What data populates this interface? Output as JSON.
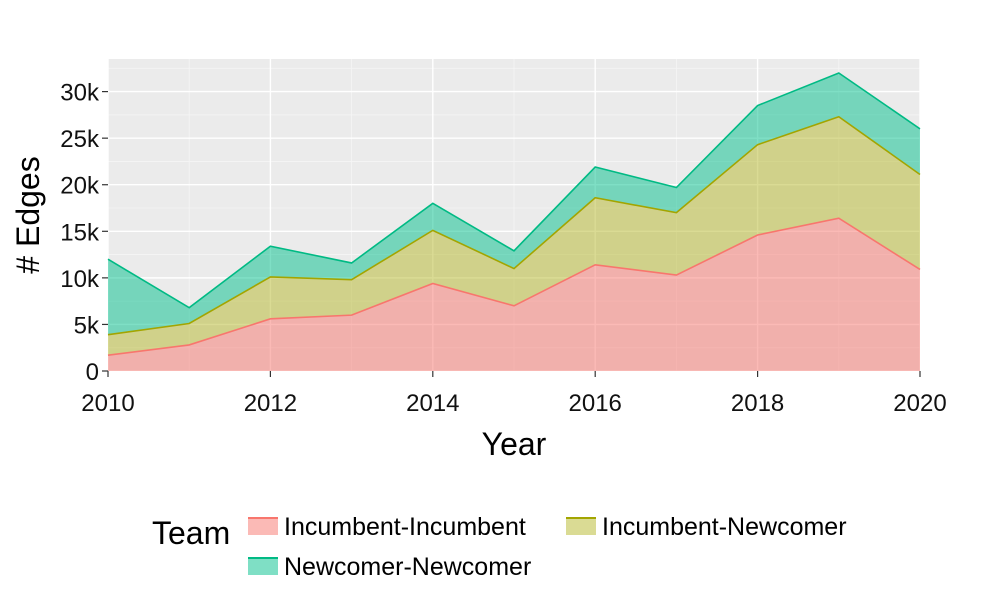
{
  "chart_data": {
    "type": "area",
    "stacked": true,
    "xlabel": "Year",
    "ylabel": "# Edges",
    "xlim": [
      2010,
      2020
    ],
    "ylim": [
      0,
      33500
    ],
    "x_ticks": [
      2010,
      2012,
      2014,
      2016,
      2018,
      2020
    ],
    "x_tick_labels": [
      "2010",
      "2012",
      "2014",
      "2016",
      "2018",
      "2020"
    ],
    "y_ticks": [
      0,
      5000,
      10000,
      15000,
      20000,
      25000,
      30000
    ],
    "y_tick_labels": [
      "0",
      "5k",
      "10k",
      "15k",
      "20k",
      "25k",
      "30k"
    ],
    "grid": true,
    "legend": {
      "title": "Team",
      "position": "bottom"
    },
    "x": [
      2010,
      2011,
      2012,
      2013,
      2014,
      2015,
      2016,
      2017,
      2018,
      2019,
      2020
    ],
    "series": [
      {
        "name": "Incumbent-Incumbent",
        "fill": "#F8766D",
        "values": [
          1700,
          2800,
          5600,
          6000,
          9400,
          7000,
          11400,
          10300,
          14600,
          16400,
          10900
        ]
      },
      {
        "name": "Incumbent-Newcomer",
        "fill": "#B5B82A",
        "values": [
          2200,
          2300,
          4500,
          3800,
          5700,
          4000,
          7200,
          6700,
          9700,
          10900,
          10200
        ]
      },
      {
        "name": "Newcomer-Newcomer",
        "fill": "#00C08B",
        "values": [
          8100,
          1700,
          3300,
          1800,
          2900,
          1900,
          3300,
          2700,
          4200,
          4700,
          4900
        ]
      }
    ]
  }
}
